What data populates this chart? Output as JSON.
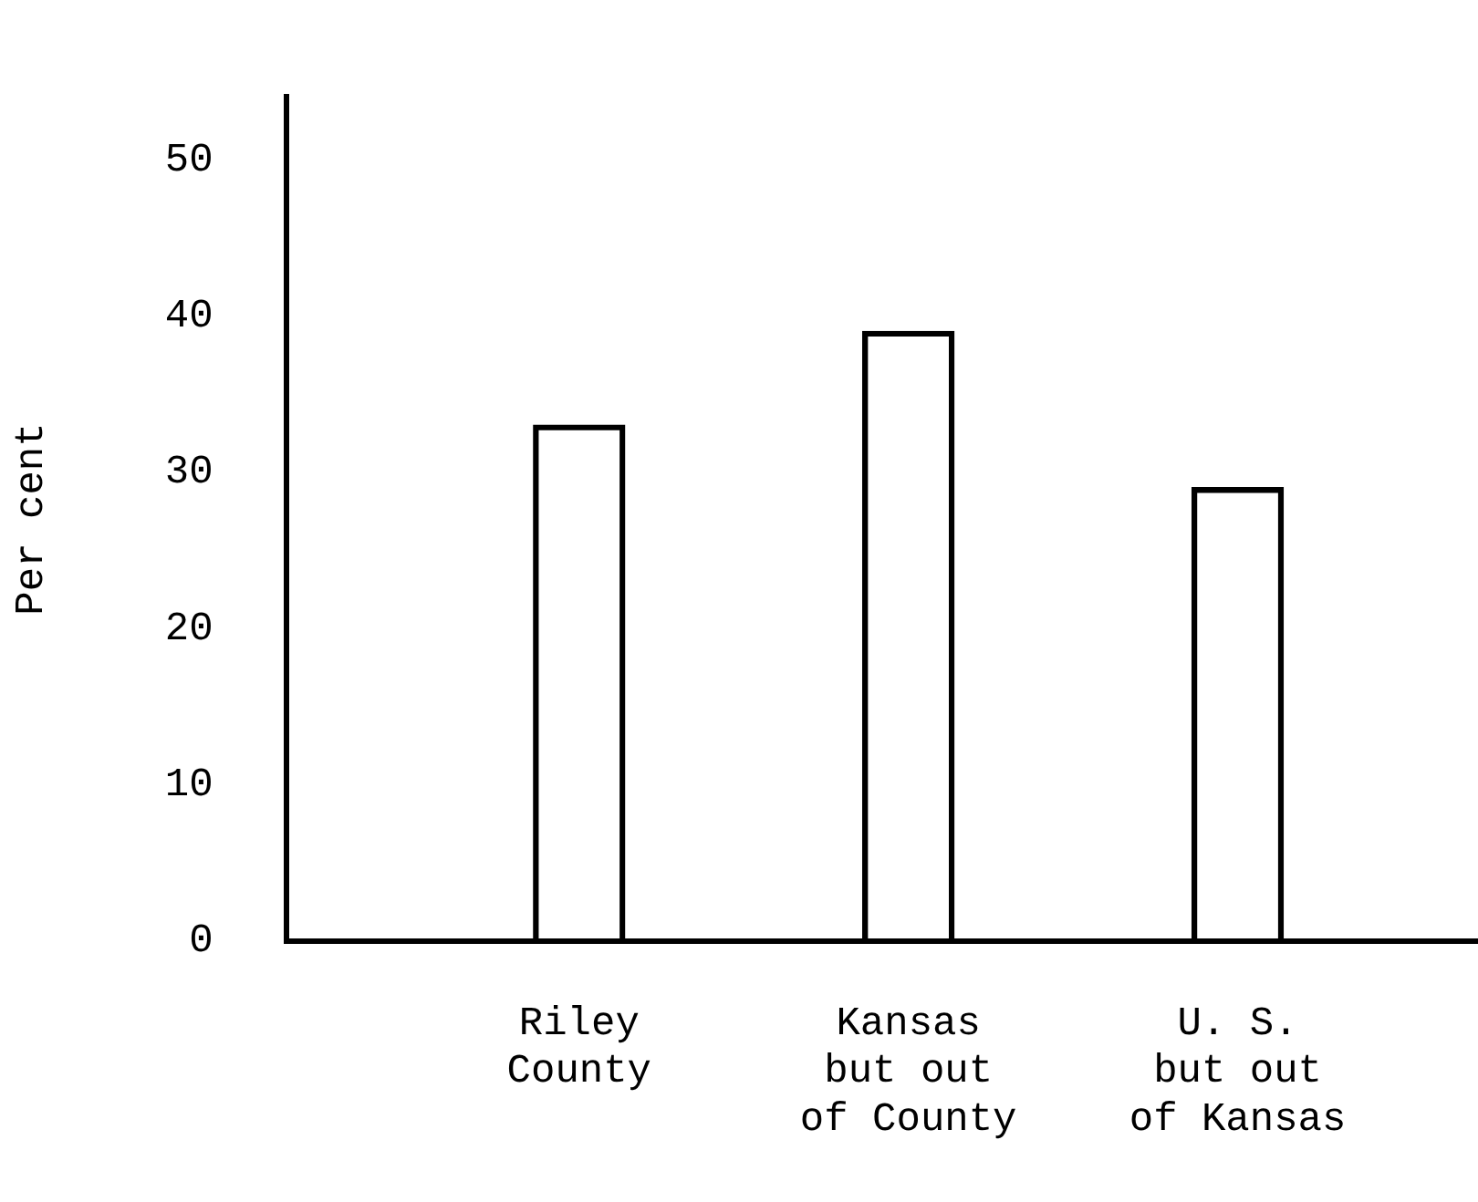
{
  "chart_data": {
    "type": "bar",
    "ylabel": "Per cent",
    "categories": [
      "Riley\nCounty",
      "Kansas\nbut out\nof County",
      "U. S.\nbut out\nof Kansas"
    ],
    "values": [
      33,
      39,
      29
    ],
    "color": "#000000",
    "ylim": [
      0,
      54
    ],
    "yticks": [
      0,
      10,
      20,
      30,
      40,
      50
    ],
    "grid": false
  }
}
